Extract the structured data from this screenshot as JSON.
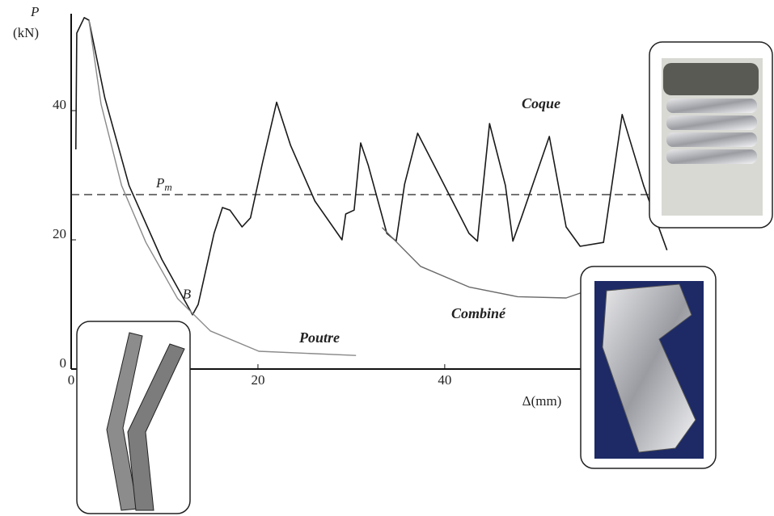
{
  "chart_data": {
    "type": "line",
    "y_label": "P",
    "y_unit": "(kN)",
    "x_label": "Δ(mm)",
    "xlim": [
      0,
      64
    ],
    "ylim": [
      0,
      55
    ],
    "xticks": [
      0,
      20,
      40
    ],
    "yticks": [
      0,
      20,
      40
    ],
    "reference": {
      "label": "P",
      "subscript": "m",
      "value": 27
    },
    "annotation": {
      "text": "B",
      "x": 13,
      "y": 8.4
    },
    "series": [
      {
        "name": "Coque",
        "color": "#1a1a1a",
        "x": [
          0.5,
          0.6,
          1.4,
          1.9,
          3.6,
          6.2,
          9.7,
          13,
          13.6,
          15.3,
          16.2,
          17,
          18.3,
          19.2,
          20.5,
          22,
          23.5,
          26.1,
          29,
          29.4,
          30.3,
          31,
          31.8,
          33.8,
          34.8,
          35.7,
          37.1,
          38.7,
          42.6,
          43.5,
          44.8,
          46.5,
          47.3,
          48.2,
          51.2,
          53,
          54.5,
          57,
          59,
          61.3,
          63.8
        ],
        "values": [
          34,
          52,
          54.4,
          54,
          42,
          28.4,
          17,
          8.4,
          10,
          21,
          25,
          24.6,
          22,
          23.4,
          32,
          41.3,
          34.6,
          26,
          20,
          24,
          24.6,
          35,
          31.6,
          21,
          19.8,
          28.6,
          36.5,
          32,
          21,
          19.8,
          38,
          28.4,
          19.8,
          23.4,
          36,
          22,
          19,
          19.6,
          39.4,
          28.4,
          18.4
        ]
      },
      {
        "name": "Poutre",
        "color": "#8a8a8a",
        "x": [
          1.9,
          3.2,
          5.4,
          8,
          11.4,
          14.9,
          20.1,
          30.5
        ],
        "values": [
          54,
          41,
          28.4,
          19.6,
          10.9,
          5.9,
          2.75,
          2.1
        ]
      },
      {
        "name": "Combiné",
        "color": "#6a6a6a",
        "x": [
          33.3,
          37.4,
          42.6,
          47.8,
          53,
          56.4
        ],
        "values": [
          21.9,
          15.9,
          12.7,
          11.2,
          11,
          12.7
        ]
      }
    ]
  }
}
